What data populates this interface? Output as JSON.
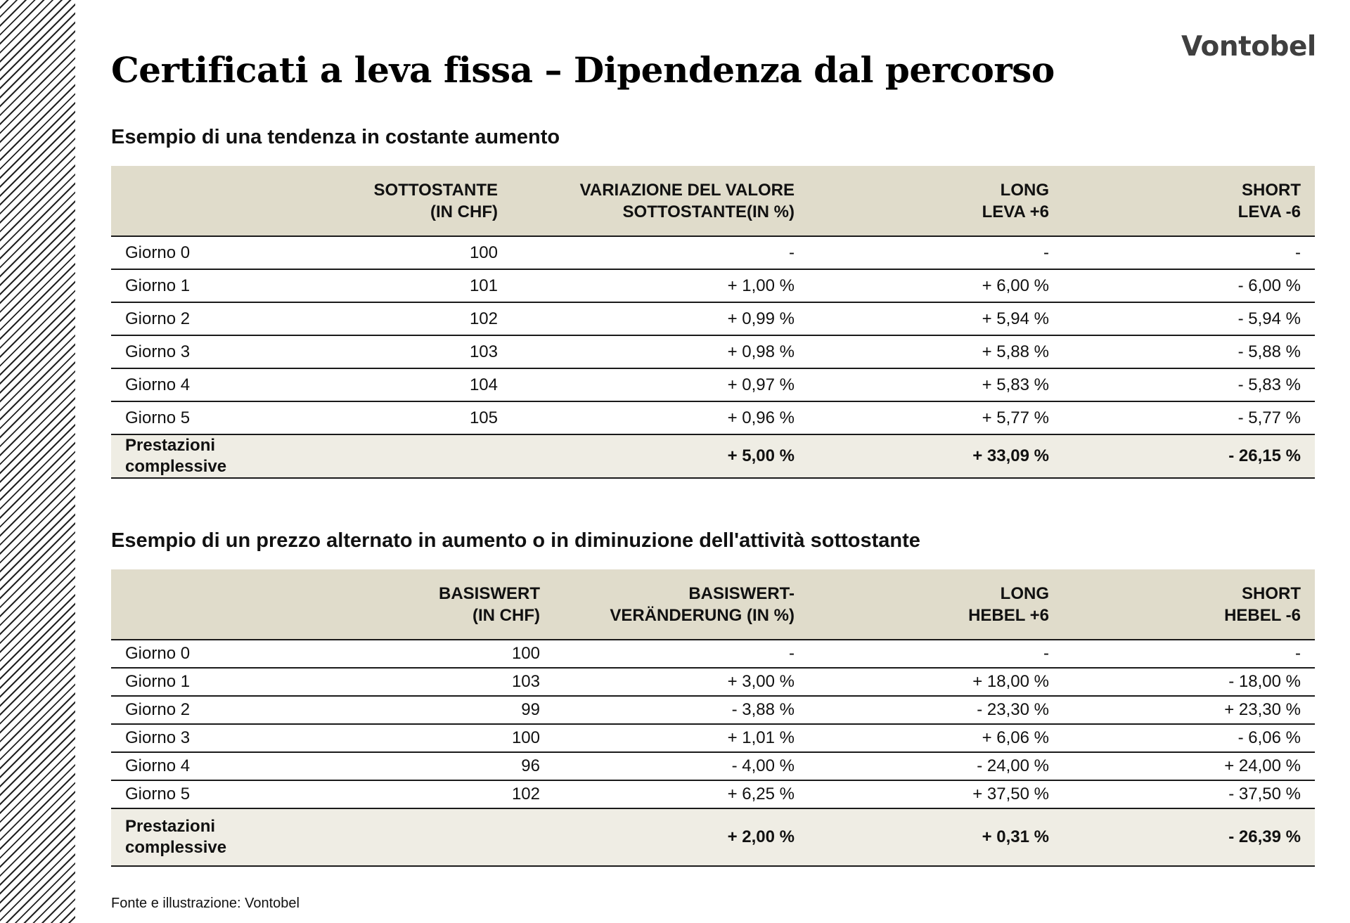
{
  "brand": "Vontobel",
  "title": "Certificati a leva fissa – Dipendenza dal percorso",
  "table1": {
    "heading": "Esempio di una tendenza in costante aumento",
    "headers": [
      {
        "line1": "",
        "line2": ""
      },
      {
        "line1": "SOTTOSTANTE",
        "line2": "(IN CHF)"
      },
      {
        "line1": "VARIAZIONE DEL VALORE",
        "line2": "SOTTOSTANTE(IN %)"
      },
      {
        "line1": "LONG",
        "line2": "LEVA +6"
      },
      {
        "line1": "SHORT",
        "line2": "LEVA -6"
      }
    ],
    "rows": [
      [
        "Giorno 0",
        "100",
        "-",
        "-",
        "-"
      ],
      [
        "Giorno 1",
        "101",
        "+ 1,00 %",
        "+ 6,00 %",
        "- 6,00 %"
      ],
      [
        "Giorno 2",
        "102",
        "+ 0,99 %",
        "+ 5,94 %",
        "- 5,94 %"
      ],
      [
        "Giorno 3",
        "103",
        "+ 0,98 %",
        "+ 5,88 %",
        "- 5,88 %"
      ],
      [
        "Giorno 4",
        "104",
        "+ 0,97 %",
        "+ 5,83 %",
        "- 5,83 %"
      ],
      [
        "Giorno 5",
        "105",
        "+ 0,96 %",
        "+ 5,77 %",
        "- 5,77 %"
      ]
    ],
    "total": {
      "label_line1": "Prestazioni",
      "label_line2": "complessive",
      "underlying": "",
      "change": "+ 5,00 %",
      "long": "+ 33,09 %",
      "short": "- 26,15 %"
    }
  },
  "table2": {
    "heading": "Esempio di un prezzo alternato in aumento o in diminuzione dell'attività sottostante",
    "headers": [
      {
        "line1": "",
        "line2": ""
      },
      {
        "line1": "BASISWERT",
        "line2": "(IN CHF)"
      },
      {
        "line1": "BASISWERT-",
        "line2": "VERÄNDERUNG (IN %)"
      },
      {
        "line1": "LONG",
        "line2": "HEBEL +6"
      },
      {
        "line1": "SHORT",
        "line2": "HEBEL -6"
      }
    ],
    "rows": [
      [
        "Giorno 0",
        "100",
        "-",
        "-",
        "-"
      ],
      [
        "Giorno 1",
        "103",
        "+ 3,00 %",
        "+ 18,00 %",
        "- 18,00 %"
      ],
      [
        "Giorno 2",
        "99",
        "- 3,88 %",
        "- 23,30 %",
        "+ 23,30 %"
      ],
      [
        "Giorno 3",
        "100",
        "+ 1,01 %",
        "+ 6,06 %",
        "- 6,06 %"
      ],
      [
        "Giorno 4",
        "96",
        "- 4,00 %",
        "- 24,00 %",
        "+ 24,00 %"
      ],
      [
        "Giorno 5",
        "102",
        "+ 6,25 %",
        "+ 37,50 %",
        "- 37,50 %"
      ]
    ],
    "total": {
      "label_line1": "Prestazioni",
      "label_line2": "complessive",
      "underlying": "",
      "change": "+ 2,00 %",
      "long": "+ 0,31 %",
      "short": "- 26,39 %"
    }
  },
  "source": "Fonte e illustrazione: Vontobel"
}
